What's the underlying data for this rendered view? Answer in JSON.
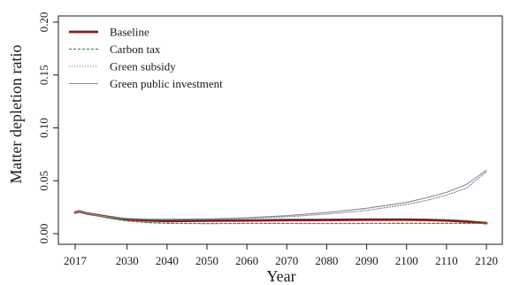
{
  "chart_data": {
    "type": "line",
    "xlabel": "Year",
    "ylabel": "Matter depletion ratio",
    "xlim": [
      2017,
      2120
    ],
    "ylim": [
      0,
      0.2
    ],
    "x_ticks": [
      2017,
      2030,
      2040,
      2050,
      2060,
      2070,
      2080,
      2090,
      2100,
      2110,
      2120
    ],
    "y_ticks": [
      0.0,
      0.05,
      0.1,
      0.15,
      0.2
    ],
    "y_tick_labels": [
      "0.00",
      "0.05",
      "0.10",
      "0.15",
      "0.20"
    ],
    "grid": false,
    "legend_position": "top-left",
    "x": [
      2017,
      2018,
      2020,
      2025,
      2030,
      2035,
      2040,
      2050,
      2060,
      2070,
      2080,
      2090,
      2100,
      2105,
      2110,
      2115,
      2120
    ],
    "series": [
      {
        "name": "Baseline",
        "color": "#8b1a1a",
        "style": "solid",
        "values": [
          0.02,
          0.021,
          0.019,
          0.016,
          0.0135,
          0.0125,
          0.012,
          0.0122,
          0.0125,
          0.0128,
          0.013,
          0.0132,
          0.0132,
          0.013,
          0.0125,
          0.0115,
          0.01
        ]
      },
      {
        "name": "Carbon tax",
        "color": "#2e9e3e",
        "style": "dashed",
        "values": [
          0.02,
          0.021,
          0.019,
          0.015,
          0.012,
          0.0105,
          0.0098,
          0.0095,
          0.0097,
          0.0097,
          0.0096,
          0.0097,
          0.0098,
          0.0098,
          0.0098,
          0.0097,
          0.0097
        ]
      },
      {
        "name": "Green subsidy",
        "color": "#7a7aa8",
        "style": "dotted",
        "values": [
          0.02,
          0.021,
          0.019,
          0.016,
          0.014,
          0.0135,
          0.0133,
          0.0135,
          0.0145,
          0.016,
          0.0185,
          0.022,
          0.0275,
          0.0315,
          0.0365,
          0.043,
          0.0585
        ]
      },
      {
        "name": "Green public investment",
        "color": "#8a8a8a",
        "style": "solid-thin",
        "values": [
          0.02,
          0.021,
          0.019,
          0.016,
          0.0145,
          0.0138,
          0.0136,
          0.014,
          0.015,
          0.017,
          0.02,
          0.024,
          0.0295,
          0.034,
          0.039,
          0.0465,
          0.06
        ]
      }
    ]
  }
}
